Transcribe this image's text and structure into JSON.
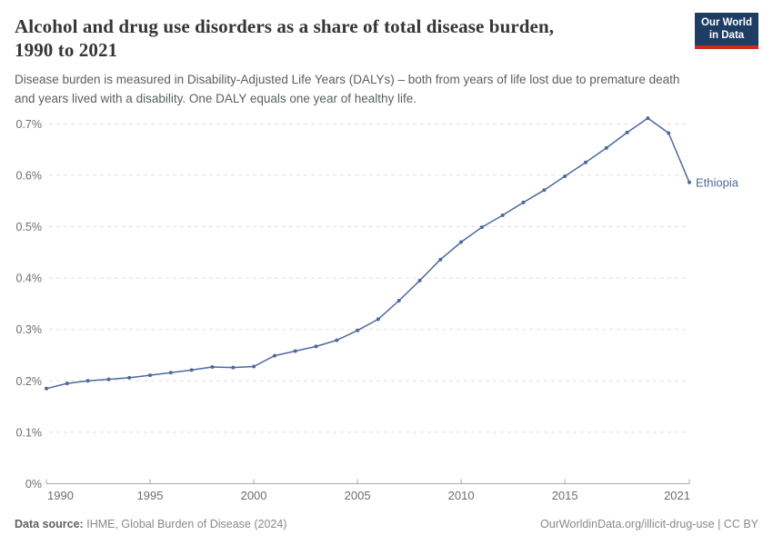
{
  "header": {
    "title_line1": "Alcohol and drug use disorders as a share of total disease burden,",
    "title_line2": "1990 to 2021",
    "subtitle_line1": "Disease burden is measured in Disability-Adjusted Life Years (DALYs) – both from years of life lost due to premature death",
    "subtitle_line2": "and years lived with a disability. One DALY equals one year of healthy life.",
    "logo": {
      "line1": "Our World",
      "line2": "in Data",
      "bg_color": "#1d3d63",
      "bar_color": "#cc2a1d"
    }
  },
  "chart_data": {
    "type": "line",
    "title": "Alcohol and drug use disorders as a share of total disease burden, 1990 to 2021",
    "unit": "%",
    "xlabel": "",
    "ylabel": "",
    "xlim": [
      1990,
      2021
    ],
    "ylim": [
      0,
      0.72
    ],
    "grid": "horizontal-dashed",
    "legend_position": "end-of-line-label",
    "x_ticks": [
      {
        "v": 1990,
        "label": "1990"
      },
      {
        "v": 1995,
        "label": "1995"
      },
      {
        "v": 2000,
        "label": "2000"
      },
      {
        "v": 2005,
        "label": "2005"
      },
      {
        "v": 2010,
        "label": "2010"
      },
      {
        "v": 2015,
        "label": "2015"
      },
      {
        "v": 2021,
        "label": "2021"
      }
    ],
    "y_ticks": [
      {
        "v": 0.0,
        "label": "0%"
      },
      {
        "v": 0.1,
        "label": "0.1%"
      },
      {
        "v": 0.2,
        "label": "0.2%"
      },
      {
        "v": 0.3,
        "label": "0.3%"
      },
      {
        "v": 0.4,
        "label": "0.4%"
      },
      {
        "v": 0.5,
        "label": "0.5%"
      },
      {
        "v": 0.6,
        "label": "0.6%"
      },
      {
        "v": 0.7,
        "label": "0.7%"
      }
    ],
    "series": [
      {
        "name": "Ethiopia",
        "color": "#4c6a9c",
        "x": [
          1990,
          1991,
          1992,
          1993,
          1994,
          1995,
          1996,
          1997,
          1998,
          1999,
          2000,
          2001,
          2002,
          2003,
          2004,
          2005,
          2006,
          2007,
          2008,
          2009,
          2010,
          2011,
          2012,
          2013,
          2014,
          2015,
          2016,
          2017,
          2018,
          2019,
          2020,
          2021
        ],
        "values": [
          0.185,
          0.195,
          0.2,
          0.203,
          0.206,
          0.211,
          0.216,
          0.221,
          0.227,
          0.226,
          0.228,
          0.249,
          0.258,
          0.267,
          0.279,
          0.298,
          0.32,
          0.356,
          0.395,
          0.436,
          0.47,
          0.499,
          0.522,
          0.547,
          0.571,
          0.598,
          0.625,
          0.653,
          0.683,
          0.711,
          0.682,
          0.586
        ]
      }
    ],
    "colors": {
      "grid": "#e0e0e0",
      "axis": "#a8a8a8",
      "tick_text": "#6e6e6e"
    }
  },
  "footer": {
    "datasource_label": "Data source:",
    "datasource_value": "IHME, Global Burden of Disease (2024)",
    "credit": "OurWorldinData.org/illicit-drug-use | CC BY"
  }
}
